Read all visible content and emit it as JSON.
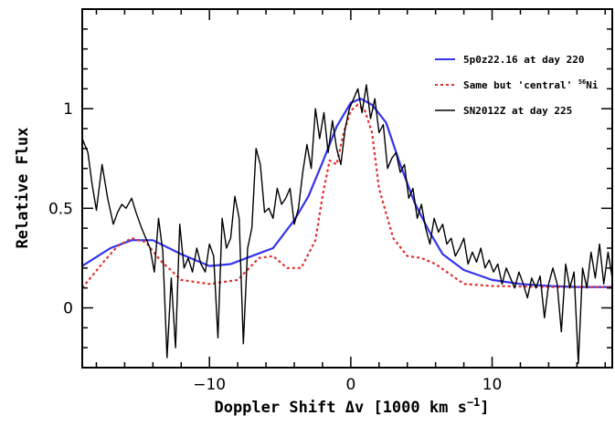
{
  "chart_data": {
    "type": "line",
    "xlabel": "Doppler Shift Δv [1000 km s",
    "xlabel_sup": "−1",
    "xlabel_close": "]",
    "ylabel": "Relative Flux",
    "xlim": [
      -19,
      18.5
    ],
    "ylim": [
      -0.3,
      1.5
    ],
    "xticks": [
      -10,
      0,
      10
    ],
    "xtick_labels": [
      "−10",
      "0",
      "10"
    ],
    "yticks": [
      0,
      0.5,
      1
    ],
    "ytick_labels": [
      "0",
      "0.5",
      "1"
    ],
    "grid": false,
    "legend_position": "top-right",
    "series": [
      {
        "name": "5p0z22.16 at day 220",
        "color": "#3333ee",
        "style": "solid",
        "x": [
          -19,
          -17,
          -15.5,
          -14,
          -12,
          -10,
          -8.5,
          -7,
          -5.5,
          -4,
          -3,
          -2,
          -1,
          0,
          0.7,
          1.5,
          2.5,
          3.5,
          4.5,
          5.5,
          6.5,
          8,
          10,
          12,
          14,
          16,
          18.5
        ],
        "y": [
          0.21,
          0.3,
          0.34,
          0.34,
          0.27,
          0.21,
          0.22,
          0.26,
          0.3,
          0.44,
          0.56,
          0.73,
          0.91,
          1.03,
          1.05,
          1.02,
          0.93,
          0.72,
          0.53,
          0.39,
          0.27,
          0.19,
          0.14,
          0.12,
          0.11,
          0.105,
          0.105
        ]
      },
      {
        "name": "Same but 'central' ⁵⁶Ni",
        "label_main": "Same but 'central' ",
        "label_sup": "56",
        "label_tail": "Ni",
        "color": "#e03030",
        "style": "dotted",
        "x": [
          -19,
          -17.5,
          -16.5,
          -15.5,
          -14.5,
          -13.5,
          -12,
          -10,
          -8,
          -6.5,
          -5.5,
          -4.5,
          -3.5,
          -2.5,
          -2,
          -1.5,
          -1,
          -0.5,
          0,
          0.5,
          1,
          1.5,
          2,
          3,
          4,
          5,
          6,
          7,
          8,
          10,
          14,
          18.5
        ],
        "y": [
          0.1,
          0.23,
          0.31,
          0.35,
          0.33,
          0.24,
          0.14,
          0.12,
          0.14,
          0.25,
          0.26,
          0.2,
          0.2,
          0.34,
          0.56,
          0.74,
          0.72,
          0.88,
          0.99,
          1.02,
          0.99,
          0.88,
          0.6,
          0.35,
          0.26,
          0.25,
          0.22,
          0.17,
          0.12,
          0.11,
          0.105,
          0.105
        ]
      },
      {
        "name": "SN2012Z at day 225",
        "color": "#000000",
        "style": "solid",
        "x": [
          -19,
          -18.6,
          -18.3,
          -18,
          -17.6,
          -17.2,
          -16.8,
          -16.5,
          -16.2,
          -15.9,
          -15.5,
          -15.2,
          -14.8,
          -14.5,
          -14.2,
          -13.9,
          -13.6,
          -13.3,
          -13.0,
          -12.7,
          -12.4,
          -12.1,
          -11.8,
          -11.5,
          -11.2,
          -10.9,
          -10.6,
          -10.3,
          -10.0,
          -9.7,
          -9.4,
          -9.1,
          -8.8,
          -8.5,
          -8.2,
          -7.9,
          -7.6,
          -7.3,
          -7.0,
          -6.7,
          -6.4,
          -6.1,
          -5.8,
          -5.5,
          -5.2,
          -4.9,
          -4.6,
          -4.3,
          -4.0,
          -3.7,
          -3.4,
          -3.1,
          -2.8,
          -2.5,
          -2.2,
          -1.9,
          -1.6,
          -1.3,
          -1.0,
          -0.7,
          -0.4,
          -0.1,
          0.2,
          0.5,
          0.8,
          1.1,
          1.4,
          1.7,
          2.0,
          2.3,
          2.6,
          2.9,
          3.2,
          3.5,
          3.8,
          4.1,
          4.4,
          4.7,
          5.0,
          5.3,
          5.6,
          5.9,
          6.2,
          6.5,
          6.8,
          7.1,
          7.4,
          7.7,
          8.0,
          8.3,
          8.6,
          8.9,
          9.2,
          9.5,
          9.8,
          10.1,
          10.4,
          10.7,
          11.0,
          11.3,
          11.6,
          11.9,
          12.2,
          12.5,
          12.8,
          13.1,
          13.4,
          13.7,
          14.0,
          14.3,
          14.6,
          14.9,
          15.2,
          15.5,
          15.8,
          16.1,
          16.4,
          16.7,
          17.0,
          17.3,
          17.6,
          17.9,
          18.2,
          18.5
        ],
        "y": [
          0.85,
          0.78,
          0.62,
          0.49,
          0.72,
          0.55,
          0.42,
          0.48,
          0.52,
          0.5,
          0.55,
          0.48,
          0.4,
          0.35,
          0.3,
          0.18,
          0.45,
          0.28,
          -0.25,
          0.15,
          -0.2,
          0.42,
          0.2,
          0.25,
          0.18,
          0.3,
          0.22,
          0.18,
          0.32,
          0.26,
          -0.15,
          0.45,
          0.3,
          0.35,
          0.56,
          0.45,
          -0.18,
          0.3,
          0.4,
          0.8,
          0.72,
          0.48,
          0.5,
          0.45,
          0.6,
          0.52,
          0.55,
          0.6,
          0.42,
          0.5,
          0.68,
          0.82,
          0.7,
          1.0,
          0.85,
          0.98,
          0.78,
          0.94,
          0.8,
          0.72,
          0.9,
          1.0,
          1.05,
          1.1,
          0.98,
          1.12,
          0.95,
          1.05,
          0.88,
          0.92,
          0.7,
          0.75,
          0.78,
          0.68,
          0.72,
          0.55,
          0.6,
          0.45,
          0.52,
          0.4,
          0.32,
          0.45,
          0.38,
          0.42,
          0.32,
          0.35,
          0.26,
          0.3,
          0.35,
          0.22,
          0.28,
          0.23,
          0.3,
          0.2,
          0.24,
          0.18,
          0.22,
          0.12,
          0.2,
          0.15,
          0.1,
          0.18,
          0.12,
          0.05,
          0.15,
          0.1,
          0.16,
          -0.05,
          0.12,
          0.2,
          0.12,
          -0.12,
          0.22,
          0.1,
          0.18,
          -0.28,
          0.2,
          0.1,
          0.28,
          0.15,
          0.32,
          0.12,
          0.28,
          0.15
        ]
      }
    ]
  }
}
